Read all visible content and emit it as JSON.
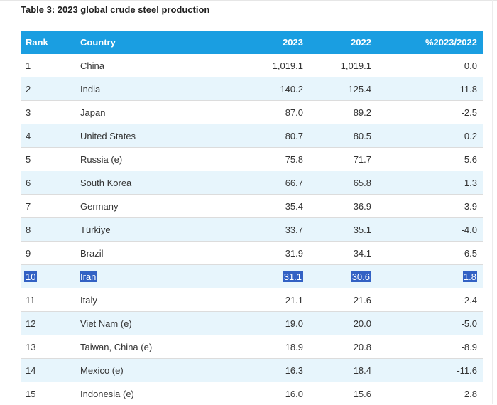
{
  "title": "Table 3: 2023 global crude steel production",
  "columns": {
    "rank": "Rank",
    "country": "Country",
    "y2023": "2023",
    "y2022": "2022",
    "pct": "%2023/2022"
  },
  "rows": [
    {
      "rank": "1",
      "country": "China",
      "y2023": "1,019.1",
      "y2022": "1,019.1",
      "pct": "0.0"
    },
    {
      "rank": "2",
      "country": "India",
      "y2023": "140.2",
      "y2022": "125.4",
      "pct": "11.8"
    },
    {
      "rank": "3",
      "country": "Japan",
      "y2023": "87.0",
      "y2022": "89.2",
      "pct": "-2.5"
    },
    {
      "rank": "4",
      "country": "United States",
      "y2023": "80.7",
      "y2022": "80.5",
      "pct": "0.2"
    },
    {
      "rank": "5",
      "country": "Russia (e)",
      "y2023": "75.8",
      "y2022": "71.7",
      "pct": "5.6"
    },
    {
      "rank": "6",
      "country": "South Korea",
      "y2023": "66.7",
      "y2022": "65.8",
      "pct": "1.3"
    },
    {
      "rank": "7",
      "country": "Germany",
      "y2023": "35.4",
      "y2022": "36.9",
      "pct": "-3.9"
    },
    {
      "rank": "8",
      "country": "Türkiye",
      "y2023": "33.7",
      "y2022": "35.1",
      "pct": "-4.0"
    },
    {
      "rank": "9",
      "country": "Brazil",
      "y2023": "31.9",
      "y2022": "34.1",
      "pct": "-6.5"
    },
    {
      "rank": "10",
      "country": "Iran",
      "y2023": "31.1",
      "y2022": "30.6",
      "pct": "1.8"
    },
    {
      "rank": "11",
      "country": "Italy",
      "y2023": "21.1",
      "y2022": "21.6",
      "pct": "-2.4"
    },
    {
      "rank": "12",
      "country": "Viet Nam (e)",
      "y2023": "19.0",
      "y2022": "20.0",
      "pct": "-5.0"
    },
    {
      "rank": "13",
      "country": "Taiwan, China (e)",
      "y2023": "18.9",
      "y2022": "20.8",
      "pct": "-8.9"
    },
    {
      "rank": "14",
      "country": "Mexico (e)",
      "y2023": "16.3",
      "y2022": "18.4",
      "pct": "-11.6"
    },
    {
      "rank": "15",
      "country": "Indonesia (e)",
      "y2023": "16.0",
      "y2022": "15.6",
      "pct": "2.8"
    }
  ],
  "selected_row_rank": "10",
  "colors": {
    "header_bg": "#1a9ee1",
    "header_text": "#ffffff",
    "stripe_bg": "#e7f5fc",
    "selection_bg": "#3261c4",
    "selection_text": "#ffffff"
  }
}
